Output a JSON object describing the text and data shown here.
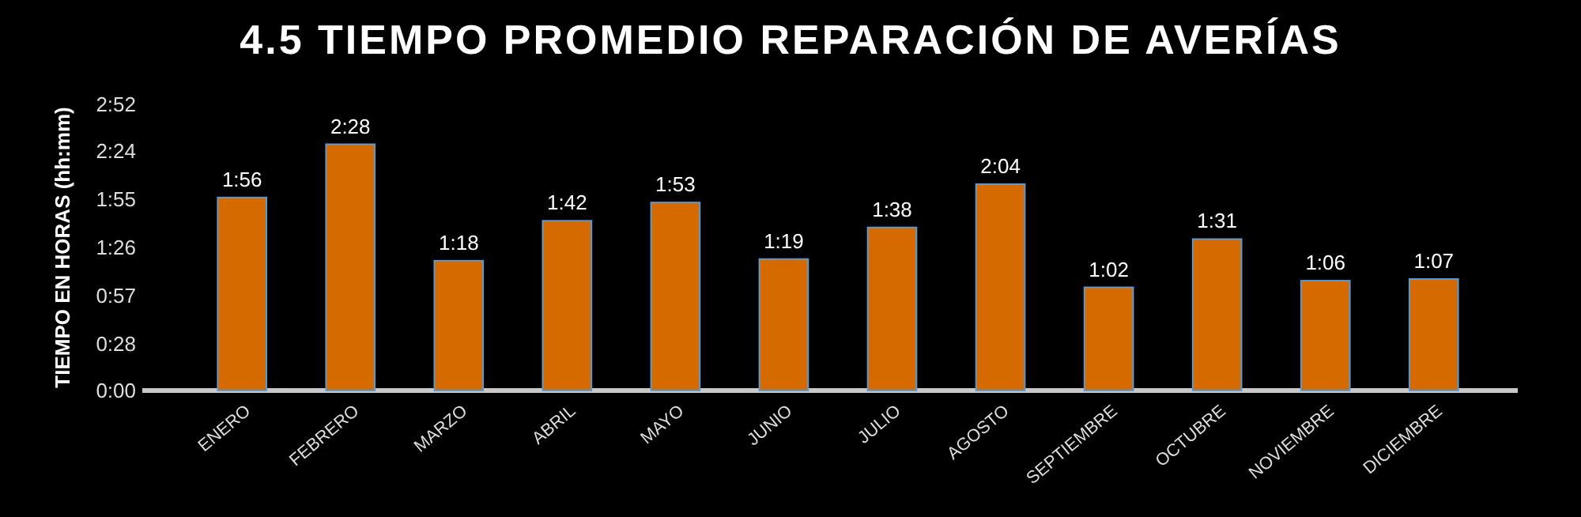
{
  "chart_data": {
    "type": "bar",
    "title": "4.5 TIEMPO PROMEDIO REPARACIÓN DE AVERÍAS",
    "ylabel": "TIEMPO EN HORAS (hh:mm)",
    "categories": [
      "ENERO",
      "FEBRERO",
      "MARZO",
      "ABRIL",
      "MAYO",
      "JUNIO",
      "JULIO",
      "AGOSTO",
      "SEPTIEMBRE",
      "OCTUBRE",
      "NOVIEMBRE",
      "DICIEMBRE"
    ],
    "values": [
      116,
      148,
      78,
      102,
      113,
      79,
      98,
      124,
      62,
      91,
      66,
      67
    ],
    "value_labels": [
      "1:56",
      "2:28",
      "1:18",
      "1:42",
      "1:53",
      "1:19",
      "1:38",
      "2:04",
      "1:02",
      "1:31",
      "1:06",
      "1:07"
    ],
    "color": "#d46a00",
    "ylim": [
      0,
      172
    ],
    "yticks": [
      {
        "value": 0,
        "label": "0:00"
      },
      {
        "value": 28,
        "label": "0:28"
      },
      {
        "value": 57,
        "label": "0:57"
      },
      {
        "value": 86,
        "label": "1:26"
      },
      {
        "value": 115,
        "label": "1:55"
      },
      {
        "value": 144,
        "label": "2:24"
      },
      {
        "value": 172,
        "label": "2:52"
      }
    ],
    "grid": false
  }
}
